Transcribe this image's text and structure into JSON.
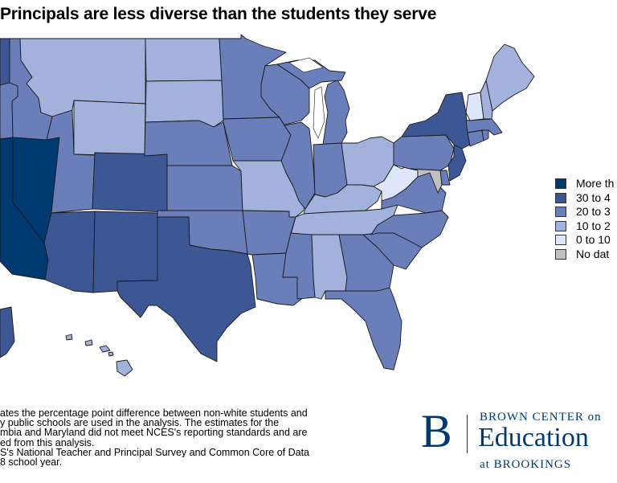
{
  "title": "Principals are less diverse than the students they serve",
  "legend": {
    "items": [
      {
        "label": "More th",
        "color": "#003a70"
      },
      {
        "label": "30 to 4",
        "color": "#3d5795"
      },
      {
        "label": "20 to 3",
        "color": "#6a7fba"
      },
      {
        "label": "10 to 2",
        "color": "#a3b2dc"
      },
      {
        "label": "0 to 10",
        "color": "#dde6fa"
      },
      {
        "label": "No dat",
        "color": "#c0c0c0"
      }
    ]
  },
  "notes": [
    "ates the percentage point difference between non-white students and",
    "y public schools are used in the analysis. The estimates for the",
    "mbia and Maryland did not meet NCES's reporting standards and are",
    "ed from this analysis.",
    "S's National Teacher and Principal Survey and Common Core of Data",
    "8 school year."
  ],
  "logo": {
    "mark": "B",
    "line1": "BROWN CENTER on",
    "line2": "Education",
    "line3": "at BROOKINGS"
  },
  "states": [
    {
      "name": "WA",
      "cat": "30 to 4"
    },
    {
      "name": "OR",
      "cat": "20 to 3"
    },
    {
      "name": "CA",
      "cat": "More th"
    },
    {
      "name": "NV",
      "cat": "More th"
    },
    {
      "name": "ID",
      "cat": "20 to 3"
    },
    {
      "name": "MT",
      "cat": "10 to 2"
    },
    {
      "name": "WY",
      "cat": "10 to 2"
    },
    {
      "name": "UT",
      "cat": "20 to 3"
    },
    {
      "name": "CO",
      "cat": "30 to 4"
    },
    {
      "name": "AZ",
      "cat": "30 to 4"
    },
    {
      "name": "NM",
      "cat": "30 to 4"
    },
    {
      "name": "ND",
      "cat": "10 to 2"
    },
    {
      "name": "SD",
      "cat": "10 to 2"
    },
    {
      "name": "NE",
      "cat": "20 to 3"
    },
    {
      "name": "KS",
      "cat": "20 to 3"
    },
    {
      "name": "OK",
      "cat": "20 to 3"
    },
    {
      "name": "TX",
      "cat": "30 to 4"
    },
    {
      "name": "MN",
      "cat": "20 to 3"
    },
    {
      "name": "IA",
      "cat": "20 to 3"
    },
    {
      "name": "MO",
      "cat": "10 to 2"
    },
    {
      "name": "AR",
      "cat": "20 to 3"
    },
    {
      "name": "LA",
      "cat": "20 to 3"
    },
    {
      "name": "WI",
      "cat": "20 to 3"
    },
    {
      "name": "IL",
      "cat": "20 to 3"
    },
    {
      "name": "MI",
      "cat": "20 to 3"
    },
    {
      "name": "IN",
      "cat": "20 to 3"
    },
    {
      "name": "OH",
      "cat": "10 to 2"
    },
    {
      "name": "KY",
      "cat": "10 to 2"
    },
    {
      "name": "TN",
      "cat": "10 to 2"
    },
    {
      "name": "MS",
      "cat": "20 to 3"
    },
    {
      "name": "AL",
      "cat": "10 to 2"
    },
    {
      "name": "GA",
      "cat": "20 to 3"
    },
    {
      "name": "FL",
      "cat": "20 to 3"
    },
    {
      "name": "SC",
      "cat": "20 to 3"
    },
    {
      "name": "NC",
      "cat": "20 to 3"
    },
    {
      "name": "VA",
      "cat": "20 to 3"
    },
    {
      "name": "WV",
      "cat": "0 to 10"
    },
    {
      "name": "MD",
      "cat": "No dat"
    },
    {
      "name": "DE",
      "cat": "20 to 3"
    },
    {
      "name": "PA",
      "cat": "20 to 3"
    },
    {
      "name": "NJ",
      "cat": "30 to 4"
    },
    {
      "name": "NY",
      "cat": "30 to 4"
    },
    {
      "name": "CT",
      "cat": "20 to 3"
    },
    {
      "name": "RI",
      "cat": "20 to 3"
    },
    {
      "name": "MA",
      "cat": "20 to 3"
    },
    {
      "name": "VT",
      "cat": "0 to 10"
    },
    {
      "name": "NH",
      "cat": "10 to 2"
    },
    {
      "name": "ME",
      "cat": "10 to 2"
    },
    {
      "name": "AK",
      "cat": "30 to 4"
    },
    {
      "name": "HI",
      "cat": "10 to 2"
    }
  ]
}
